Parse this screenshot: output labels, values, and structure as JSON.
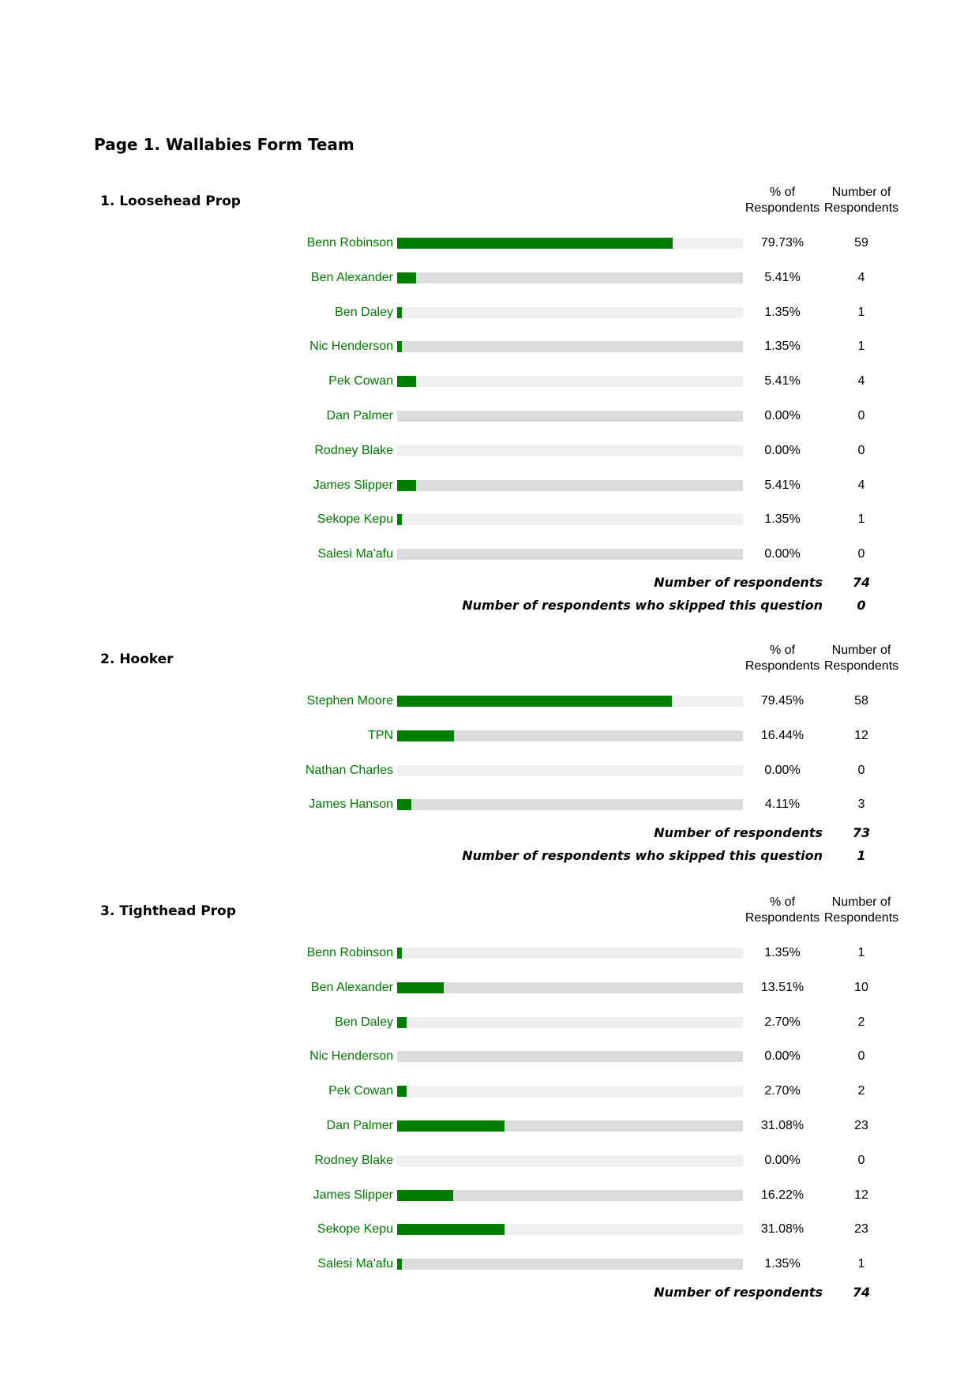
{
  "page_title": "Page 1. Wallabies Form Team",
  "colors": {
    "bar_fill": "#007e00",
    "label_text": "#007a00",
    "track_light": "#efefef",
    "track_dark": "#dcdcdc"
  },
  "questions": [
    {
      "title": "1. Loosehead Prop",
      "pct_header": "% of Respondents",
      "num_header": "Number of Respondents",
      "rows": [
        {
          "label": "Benn Robinson",
          "pct": "79.73%",
          "count": "59",
          "fill": 0.7973
        },
        {
          "label": "Ben Alexander",
          "pct": "5.41%",
          "count": "4",
          "fill": 0.0541
        },
        {
          "label": "Ben Daley",
          "pct": "1.35%",
          "count": "1",
          "fill": 0.0135
        },
        {
          "label": "Nic Henderson",
          "pct": "1.35%",
          "count": "1",
          "fill": 0.0135
        },
        {
          "label": "Pek Cowan",
          "pct": "5.41%",
          "count": "4",
          "fill": 0.0541
        },
        {
          "label": "Dan Palmer",
          "pct": "0.00%",
          "count": "0",
          "fill": 0
        },
        {
          "label": "Rodney Blake",
          "pct": "0.00%",
          "count": "0",
          "fill": 0
        },
        {
          "label": "James Slipper",
          "pct": "5.41%",
          "count": "4",
          "fill": 0.0541
        },
        {
          "label": "Sekope Kepu",
          "pct": "1.35%",
          "count": "1",
          "fill": 0.0135
        },
        {
          "label": "Salesi Ma'afu",
          "pct": "0.00%",
          "count": "0",
          "fill": 0
        }
      ],
      "summaries": [
        {
          "label": "Number of respondents",
          "value": "74"
        },
        {
          "label": "Number of respondents who skipped this question",
          "value": "0"
        }
      ]
    },
    {
      "title": "2. Hooker",
      "pct_header": "% of Respondents",
      "num_header": "Number of Respondents",
      "rows": [
        {
          "label": "Stephen Moore",
          "pct": "79.45%",
          "count": "58",
          "fill": 0.7945
        },
        {
          "label": "TPN",
          "pct": "16.44%",
          "count": "12",
          "fill": 0.1644
        },
        {
          "label": "Nathan Charles",
          "pct": "0.00%",
          "count": "0",
          "fill": 0
        },
        {
          "label": "James Hanson",
          "pct": "4.11%",
          "count": "3",
          "fill": 0.0411
        }
      ],
      "summaries": [
        {
          "label": "Number of respondents",
          "value": "73"
        },
        {
          "label": "Number of respondents who skipped this question",
          "value": "1"
        }
      ]
    },
    {
      "title": "3. Tighthead Prop",
      "pct_header": "% of Respondents",
      "num_header": "Number of Respondents",
      "rows": [
        {
          "label": "Benn Robinson",
          "pct": "1.35%",
          "count": "1",
          "fill": 0.0135
        },
        {
          "label": "Ben Alexander",
          "pct": "13.51%",
          "count": "10",
          "fill": 0.1351
        },
        {
          "label": "Ben Daley",
          "pct": "2.70%",
          "count": "2",
          "fill": 0.027
        },
        {
          "label": "Nic Henderson",
          "pct": "0.00%",
          "count": "0",
          "fill": 0
        },
        {
          "label": "Pek Cowan",
          "pct": "2.70%",
          "count": "2",
          "fill": 0.027
        },
        {
          "label": "Dan Palmer",
          "pct": "31.08%",
          "count": "23",
          "fill": 0.3108
        },
        {
          "label": "Rodney Blake",
          "pct": "0.00%",
          "count": "0",
          "fill": 0
        },
        {
          "label": "James Slipper",
          "pct": "16.22%",
          "count": "12",
          "fill": 0.1622
        },
        {
          "label": "Sekope Kepu",
          "pct": "31.08%",
          "count": "23",
          "fill": 0.3108
        },
        {
          "label": "Salesi Ma'afu",
          "pct": "1.35%",
          "count": "1",
          "fill": 0.0135
        }
      ],
      "summaries": [
        {
          "label": "Number of respondents",
          "value": "74"
        }
      ]
    }
  ]
}
